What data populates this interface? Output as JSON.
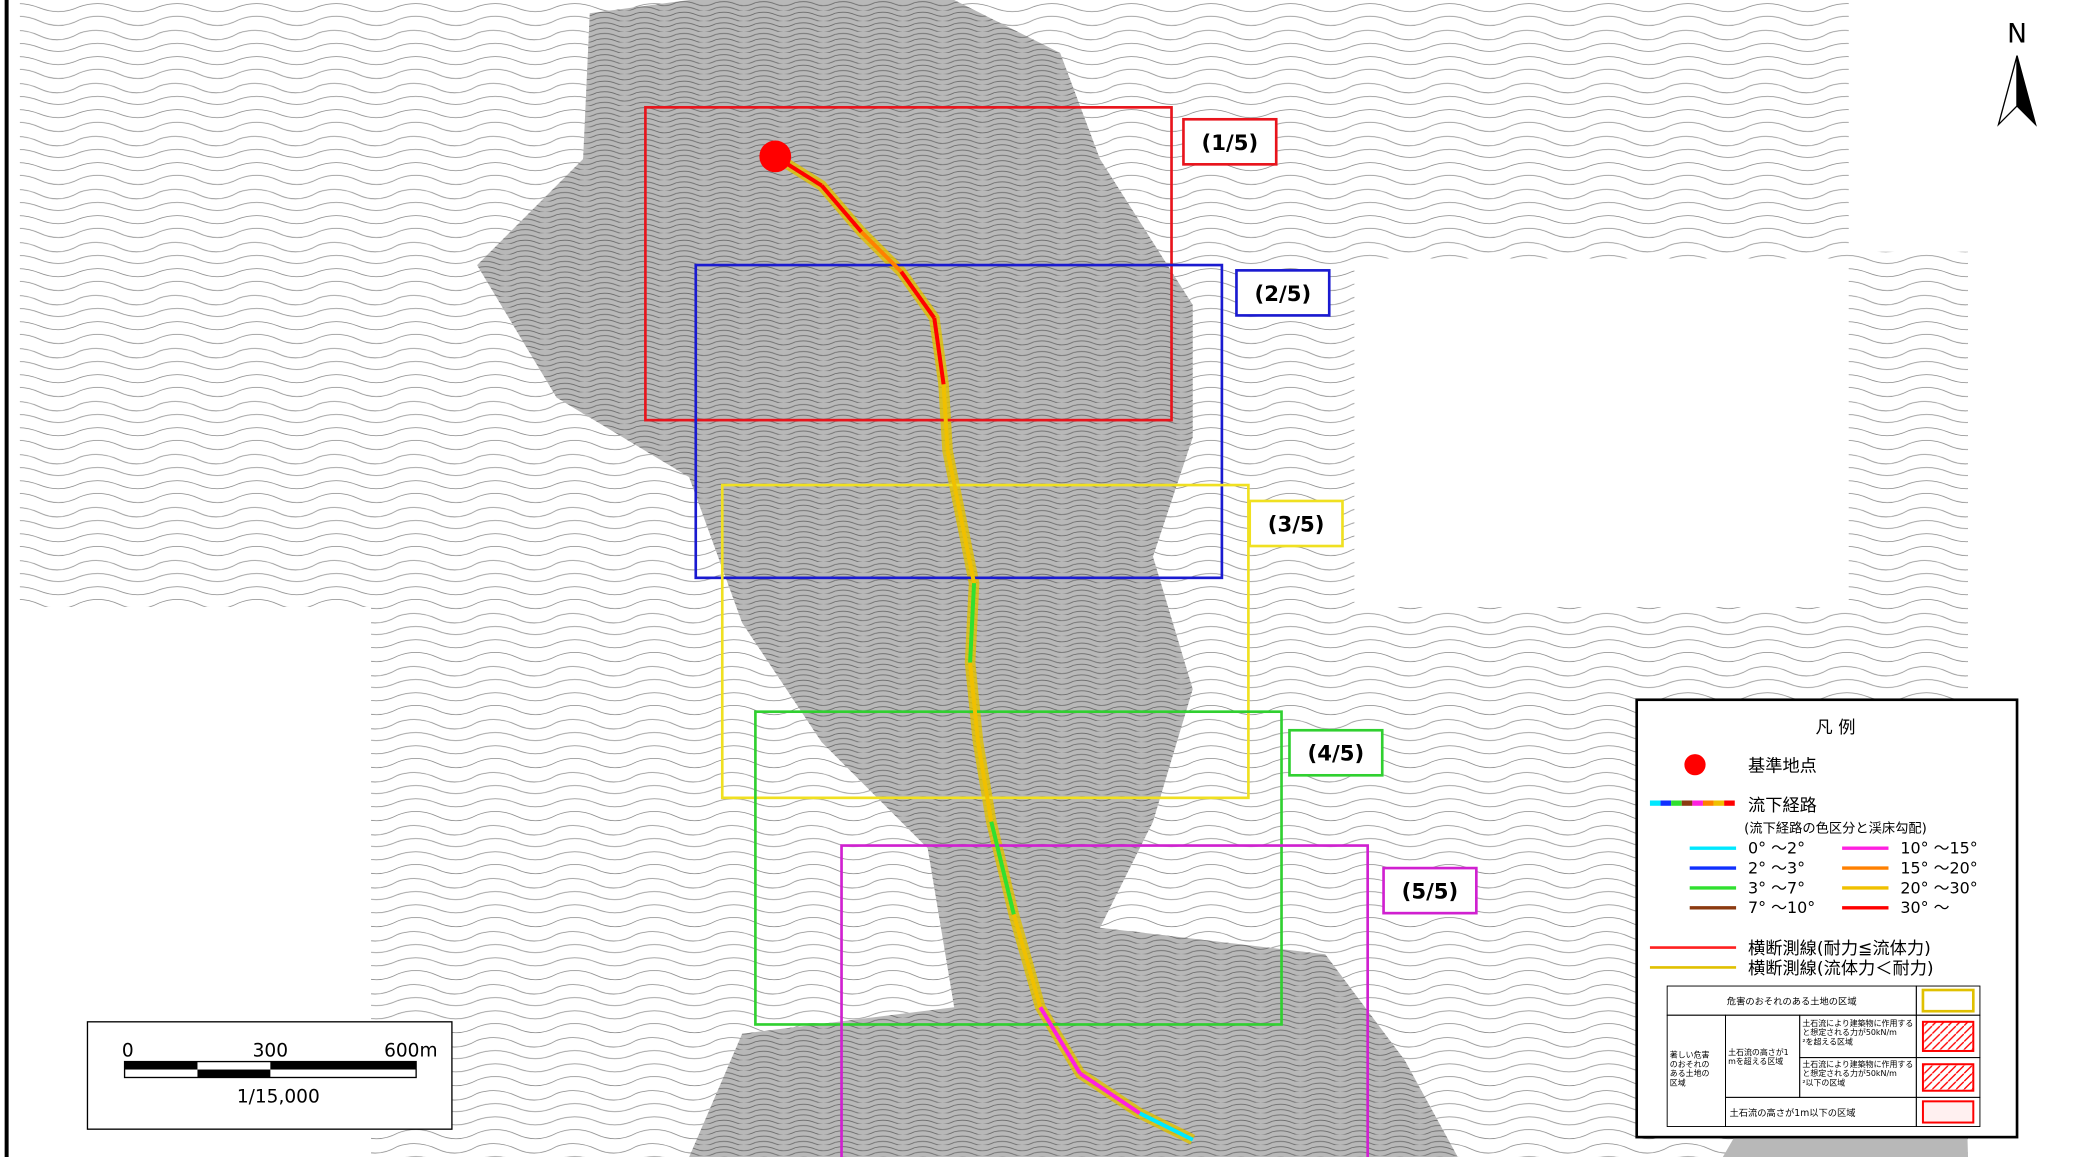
{
  "map": {
    "north": "N",
    "sheets": [
      {
        "label": "(1/5)",
        "color": "#e8141c"
      },
      {
        "label": "(2/5)",
        "color": "#1a1ad0"
      },
      {
        "label": "(3/5)",
        "color": "#f0e020"
      },
      {
        "label": "(4/5)",
        "color": "#30d030"
      },
      {
        "label": "(5/5)",
        "color": "#d020d0"
      }
    ]
  },
  "legend": {
    "title": "凡 例",
    "reference_point": "基準地点",
    "reference_color": "#ff0000",
    "flow_path": "流下経路",
    "flow_path_note": "(流下経路の色区分と渓床勾配)",
    "slopes": [
      {
        "label": "0° ～2°",
        "color": "#00e8ff"
      },
      {
        "label": "2° ～3°",
        "color": "#1030ff"
      },
      {
        "label": "3° ～7°",
        "color": "#30e030"
      },
      {
        "label": "7° ～10°",
        "color": "#8b3a10"
      },
      {
        "label": "10° ～15°",
        "color": "#ff20e0"
      },
      {
        "label": "15° ～20°",
        "color": "#ff8000"
      },
      {
        "label": "20° ～30°",
        "color": "#f0c000"
      },
      {
        "label": "30° ～",
        "color": "#ff0000"
      }
    ],
    "cross_sections": [
      {
        "label": "横断測線(耐力≦流体力)",
        "color": "#ff2020"
      },
      {
        "label": "横断測線(流体力＜耐力)",
        "color": "#e0c000"
      }
    ],
    "zones": {
      "header": "危害のおそれのある土地の区域",
      "severe": "著しい危害のおそれのある土地の区域",
      "over_1m": "土石流の高さが1mを超える区域",
      "force_over": "土石流により建築物に作用すると想定される力が50kN/m²を超える区域",
      "force_under": "土石流により建築物に作用すると想定される力が50kN/m²以下の区域",
      "under_1m": "土石流の高さが1m以下の区域"
    }
  },
  "scale": {
    "ticks": [
      "0",
      "300",
      "600m"
    ],
    "ratio": "1/15,000"
  }
}
